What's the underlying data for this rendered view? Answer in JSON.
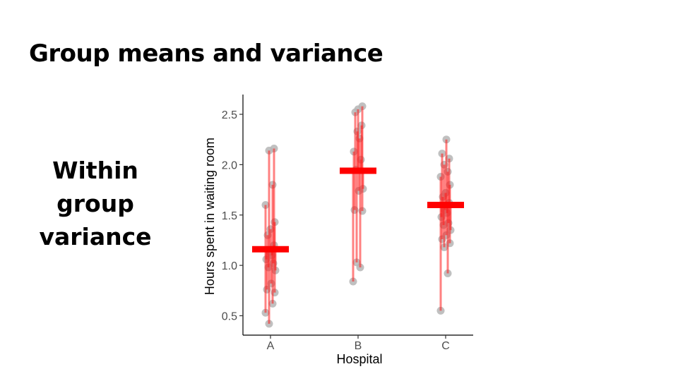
{
  "slide": {
    "title": "Group means and variance",
    "side_label_lines": [
      "Within",
      "group",
      "variance"
    ]
  },
  "chart_data": {
    "type": "scatter",
    "title": "",
    "xlabel": "Hospital",
    "ylabel": "Hours spent in waiting room",
    "categories": [
      "A",
      "B",
      "C"
    ],
    "ylim": [
      0.4,
      2.7
    ],
    "yticks": [
      0.5,
      1.0,
      1.5,
      2.0,
      2.5
    ],
    "ytick_labels": [
      "0.5",
      "1.0",
      "1.5",
      "2.0",
      "2.5"
    ],
    "grid": false,
    "group_means": [
      1.16,
      1.94,
      1.6
    ],
    "points": {
      "A": [
        0.53,
        0.62,
        0.42,
        0.73,
        0.76,
        0.82,
        0.95,
        0.98,
        1.02,
        1.06,
        1.1,
        1.13,
        1.2,
        1.3,
        1.36,
        1.43,
        1.6,
        1.8,
        2.14,
        2.16
      ],
      "B": [
        0.84,
        0.98,
        1.03,
        1.54,
        1.55,
        1.74,
        1.76,
        1.95,
        2.05,
        2.13,
        2.26,
        2.33,
        2.39,
        2.52,
        2.55,
        2.58
      ],
      "C": [
        0.55,
        0.92,
        1.18,
        1.22,
        1.26,
        1.3,
        1.35,
        1.4,
        1.42,
        1.48,
        1.52,
        1.55,
        1.62,
        1.68,
        1.72,
        1.8,
        1.88,
        1.93,
        2.0,
        2.06,
        2.11,
        2.25
      ]
    },
    "colors": {
      "point": "#b5b5b5",
      "residual": "#ff1a1a",
      "mean": "#ff0000",
      "axis": "#000000"
    }
  }
}
